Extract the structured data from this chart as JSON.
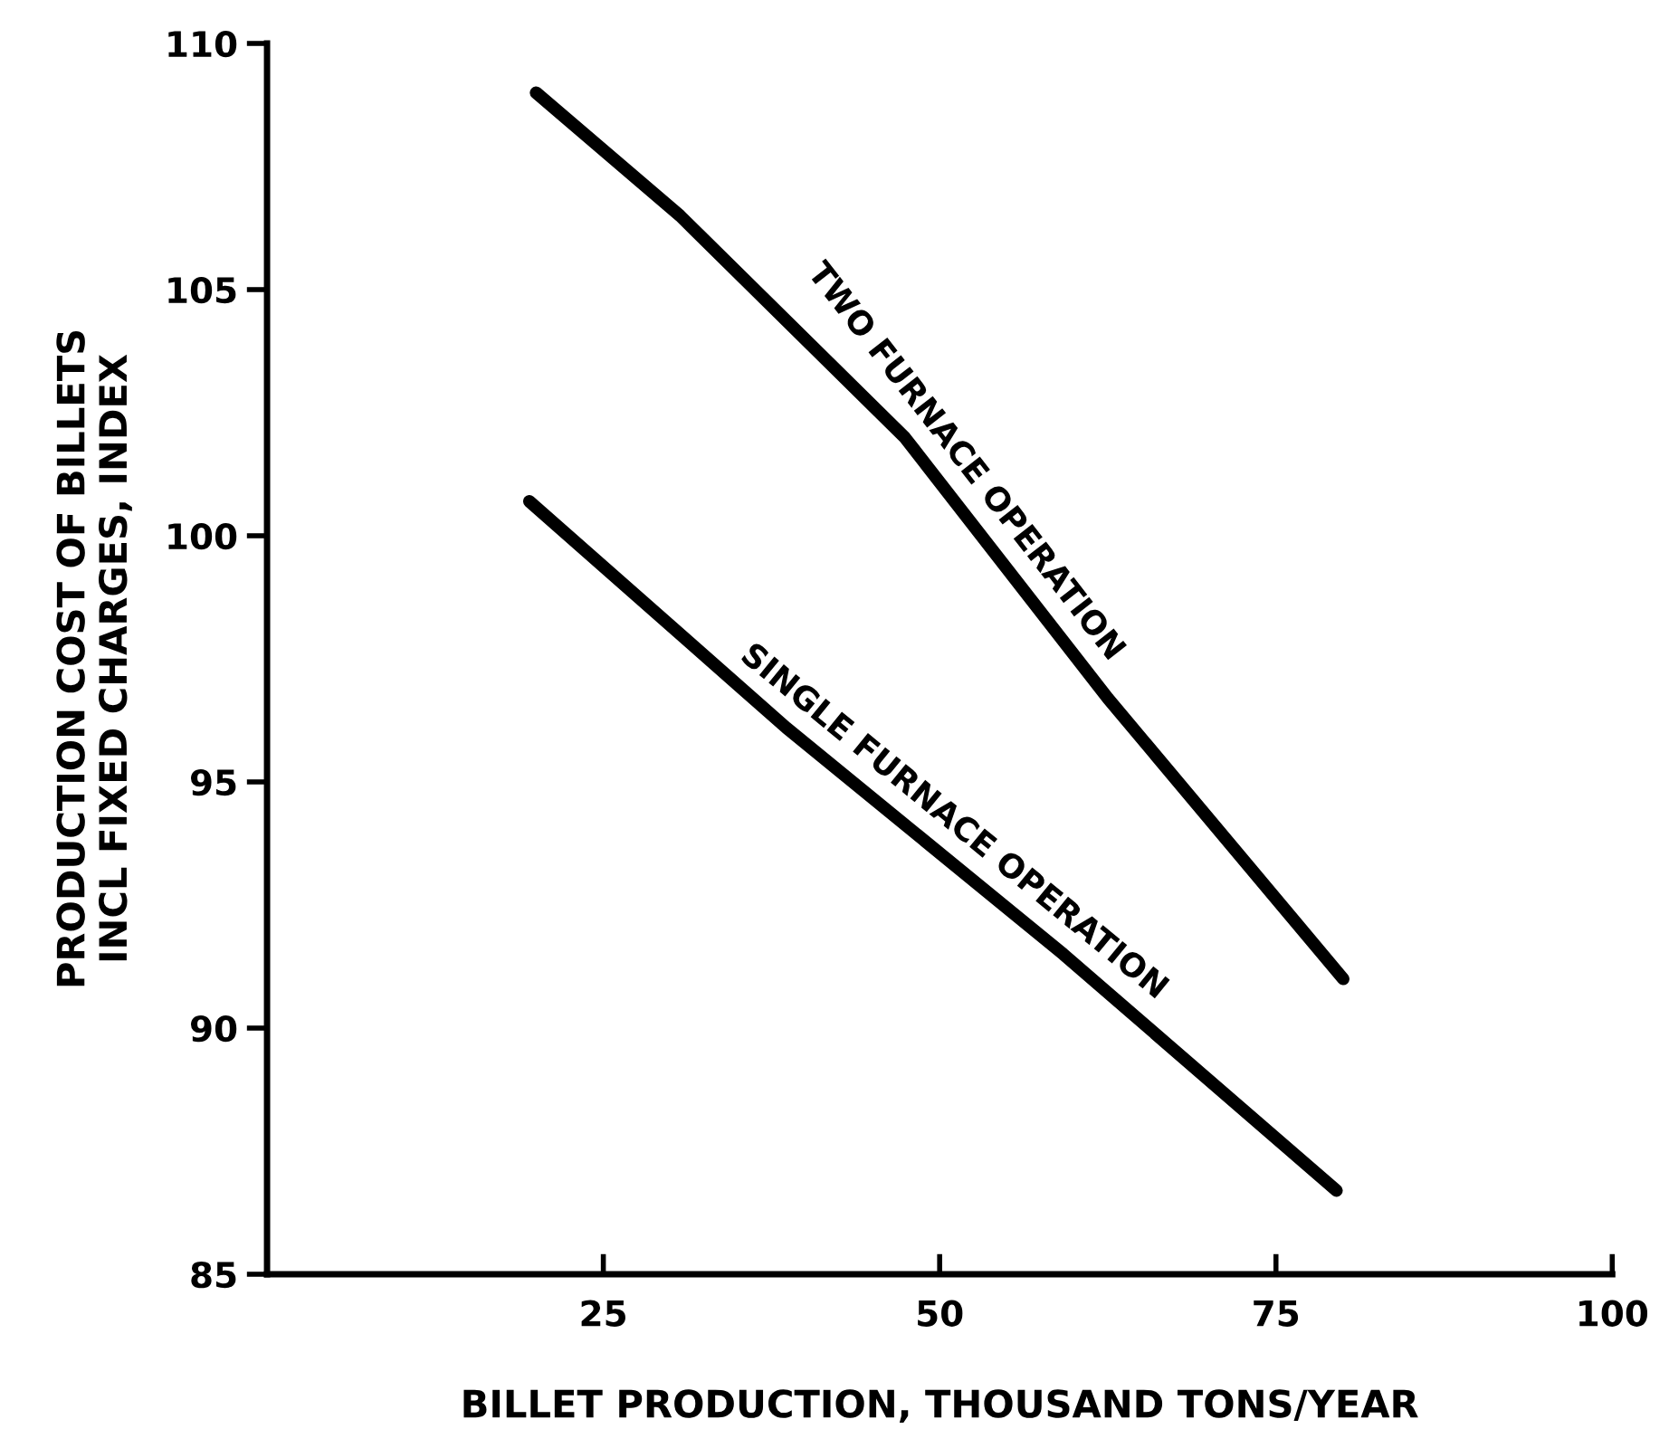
{
  "chart_data": {
    "type": "line",
    "xlabel": "BILLET PRODUCTION, THOUSAND TONS/YEAR",
    "ylabel": "PRODUCTION COST OF BILLETS\nINCL FIXED CHARGES, INDEX",
    "xlim": [
      0,
      100
    ],
    "xticks": [
      25,
      50,
      75,
      100
    ],
    "ylim": [
      85,
      110
    ],
    "yticks": [
      85,
      90,
      95,
      100,
      105,
      110
    ],
    "grid": false,
    "legend": false,
    "marker": "none",
    "line_style": "solid",
    "series": [
      {
        "name": "TWO FURNACE OPERATION",
        "color": "#000000",
        "x": [
          20,
          30.7,
          47.4,
          62.5,
          80
        ],
        "values": [
          109.0,
          106.5,
          102.0,
          96.7,
          91.0
        ]
      },
      {
        "name": "SINGLE FURNACE OPERATION",
        "color": "#000000",
        "x": [
          19.5,
          38.6,
          59.2,
          79.5
        ],
        "values": [
          100.7,
          96.1,
          91.5,
          86.7
        ]
      }
    ]
  }
}
